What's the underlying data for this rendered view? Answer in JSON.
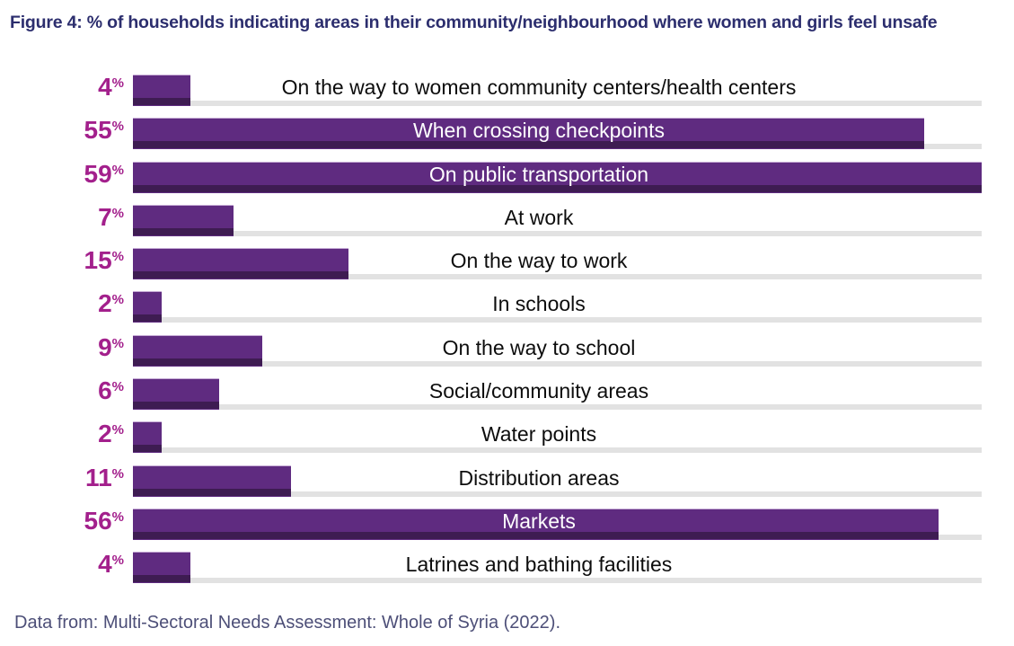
{
  "title": "Figure 4: % of households indicating areas in their community/neighbourhood where women and girls feel unsafe",
  "source": "Data from: Multi-Sectoral Needs Assessment: Whole of Syria (2022).",
  "colors": {
    "bar": "#5F2B80",
    "bar_shade": "#3E1C52",
    "bar_highlight": "#C7ADD6",
    "track": "#E2E2E2",
    "percent": "#A3208C",
    "title": "#2C2E6E",
    "footer": "#4D4F78",
    "label_dark": "#0D0D0D",
    "label_light": "#FFFFFF",
    "page_bg": "#FFFFFF"
  },
  "chart_data": {
    "type": "bar",
    "orientation": "horizontal",
    "title": "Figure 4: % of households indicating areas in their community/neighbourhood where women and girls feel unsafe",
    "unit": "%",
    "xlim": [
      0,
      59
    ],
    "grid": false,
    "legend": false,
    "value_label_position": "left-of-bar",
    "category_label_position": "centered-on-row",
    "categories": [
      "On the way to women community centers/health centers",
      "When crossing checkpoints",
      "On public transportation",
      "At work",
      "On the way to work",
      "In schools",
      "On the way to school",
      "Social/community areas",
      "Water points",
      "Distribution areas",
      "Markets",
      "Latrines and bathing facilities"
    ],
    "values": [
      4,
      55,
      59,
      7,
      15,
      2,
      9,
      6,
      2,
      11,
      56,
      4
    ]
  }
}
